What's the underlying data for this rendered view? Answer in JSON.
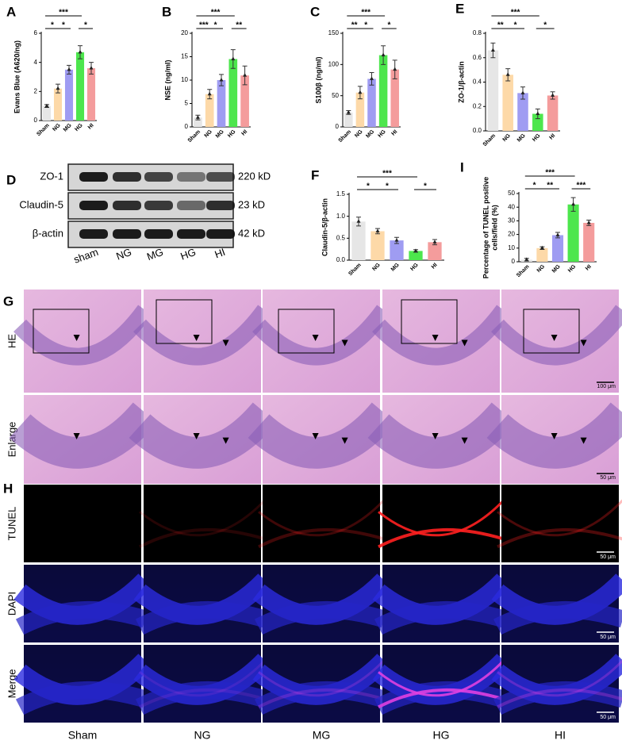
{
  "chart_data": [
    {
      "type": "bar",
      "panel": "A",
      "ylabel": "Evans Blue (A620/ng)",
      "categories": [
        "Sham",
        "NG",
        "MG",
        "HG",
        "HI"
      ],
      "values": [
        1.0,
        2.2,
        3.5,
        4.7,
        3.6
      ],
      "errors": [
        0.1,
        0.3,
        0.3,
        0.45,
        0.4
      ],
      "colors": [
        "#e6e6e6",
        "#fdd9a8",
        "#9f9cf2",
        "#4de64d",
        "#f49c9c"
      ],
      "ylim": [
        0,
        6
      ],
      "yticks": [
        0,
        2,
        4,
        6
      ],
      "comparisons": [
        {
          "groups": [
            "Sham",
            "NG"
          ],
          "label": "*"
        },
        {
          "groups": [
            "NG",
            "MG"
          ],
          "label": "*"
        },
        {
          "groups": [
            "Sham",
            "HG"
          ],
          "label": "***"
        },
        {
          "groups": [
            "HG",
            "HI"
          ],
          "label": "*"
        }
      ]
    },
    {
      "type": "bar",
      "panel": "B",
      "ylabel": "NSE (ng/ml)",
      "categories": [
        "Sham",
        "NG",
        "MG",
        "HG",
        "HI"
      ],
      "values": [
        2,
        7,
        10,
        14.5,
        11
      ],
      "errors": [
        0.5,
        1,
        1.2,
        2,
        2
      ],
      "colors": [
        "#e6e6e6",
        "#fdd9a8",
        "#9f9cf2",
        "#4de64d",
        "#f49c9c"
      ],
      "ylim": [
        0,
        20
      ],
      "yticks": [
        0,
        5,
        10,
        15,
        20
      ],
      "comparisons": [
        {
          "groups": [
            "Sham",
            "NG"
          ],
          "label": "***"
        },
        {
          "groups": [
            "NG",
            "MG"
          ],
          "label": "*"
        },
        {
          "groups": [
            "Sham",
            "HG"
          ],
          "label": "***"
        },
        {
          "groups": [
            "HG",
            "HI"
          ],
          "label": "**"
        }
      ]
    },
    {
      "type": "bar",
      "panel": "C",
      "ylabel": "S100β (ng/ml)",
      "categories": [
        "Sham",
        "NG",
        "MG",
        "HG",
        "HI"
      ],
      "values": [
        23,
        55,
        77,
        115,
        92
      ],
      "errors": [
        3,
        10,
        10,
        15,
        15
      ],
      "colors": [
        "#e6e6e6",
        "#fdd9a8",
        "#9f9cf2",
        "#4de64d",
        "#f49c9c"
      ],
      "ylim": [
        0,
        150
      ],
      "yticks": [
        0,
        50,
        100,
        150
      ],
      "comparisons": [
        {
          "groups": [
            "Sham",
            "NG"
          ],
          "label": "**"
        },
        {
          "groups": [
            "NG",
            "MG"
          ],
          "label": "*"
        },
        {
          "groups": [
            "Sham",
            "HG"
          ],
          "label": "***"
        },
        {
          "groups": [
            "HG",
            "HI"
          ],
          "label": "*"
        }
      ]
    },
    {
      "type": "bar",
      "panel": "E",
      "ylabel": "ZO-1/β-actin",
      "categories": [
        "Sham",
        "NG",
        "MG",
        "HG",
        "HI"
      ],
      "values": [
        0.66,
        0.46,
        0.31,
        0.14,
        0.29
      ],
      "errors": [
        0.06,
        0.05,
        0.05,
        0.04,
        0.03
      ],
      "colors": [
        "#e6e6e6",
        "#fdd9a8",
        "#9f9cf2",
        "#4de64d",
        "#f49c9c"
      ],
      "ylim": [
        0,
        0.8
      ],
      "yticks": [
        {
          "value": 0,
          "label": "0.0"
        },
        0.2,
        0.4,
        0.6,
        0.8
      ],
      "comparisons": [
        {
          "groups": [
            "Sham",
            "NG"
          ],
          "label": "**"
        },
        {
          "groups": [
            "NG",
            "MG"
          ],
          "label": "*"
        },
        {
          "groups": [
            "Sham",
            "HG"
          ],
          "label": "***"
        },
        {
          "groups": [
            "HG",
            "HI"
          ],
          "label": "*"
        }
      ]
    },
    {
      "type": "bar",
      "panel": "F",
      "ylabel": "Claudin-5/β-actin",
      "categories": [
        "Sham",
        "NG",
        "MG",
        "HG",
        "HI"
      ],
      "values": [
        0.88,
        0.66,
        0.45,
        0.21,
        0.41
      ],
      "errors": [
        0.1,
        0.06,
        0.07,
        0.03,
        0.06
      ],
      "colors": [
        "#e6e6e6",
        "#fdd9a8",
        "#9f9cf2",
        "#4de64d",
        "#f49c9c"
      ],
      "ylim": [
        0,
        1.5
      ],
      "yticks": [
        {
          "value": 0,
          "label": "0.0"
        },
        0.5,
        {
          "value": 1,
          "label": "1.0"
        },
        1.5
      ],
      "comparisons": [
        {
          "groups": [
            "Sham",
            "NG"
          ],
          "label": "*"
        },
        {
          "groups": [
            "NG",
            "MG"
          ],
          "label": "*"
        },
        {
          "groups": [
            "Sham",
            "HG"
          ],
          "label": "***"
        },
        {
          "groups": [
            "HG",
            "HI"
          ],
          "label": "*"
        }
      ]
    },
    {
      "type": "bar",
      "panel": "I",
      "ylabel": [
        "Percentage of TUNEL positive",
        "cells/field (%)"
      ],
      "categories": [
        "Sham",
        "NG",
        "MG",
        "HG",
        "HI"
      ],
      "values": [
        1.5,
        10,
        19.5,
        42,
        28.5
      ],
      "errors": [
        1,
        1,
        2,
        5,
        2
      ],
      "colors": [
        "#e6e6e6",
        "#fdd9a8",
        "#9f9cf2",
        "#4de64d",
        "#f49c9c"
      ],
      "ylim": [
        0,
        50
      ],
      "yticks": [
        0,
        10,
        20,
        30,
        40,
        50
      ],
      "comparisons": [
        {
          "groups": [
            "Sham",
            "NG"
          ],
          "label": "*"
        },
        {
          "groups": [
            "NG",
            "MG"
          ],
          "label": "**"
        },
        {
          "groups": [
            "Sham",
            "HG"
          ],
          "label": "***"
        },
        {
          "groups": [
            "HG",
            "HI"
          ],
          "label": "***"
        }
      ]
    }
  ],
  "blot": {
    "panel": "D",
    "rows": [
      {
        "protein": "ZO-1",
        "size": "220 kD"
      },
      {
        "protein": "Claudin-5",
        "size": "23  kD"
      },
      {
        "protein": "β-actin",
        "size": "42  kD"
      }
    ],
    "lanes": [
      "sham",
      "NG",
      "MG",
      "HG",
      "HI"
    ]
  },
  "he": {
    "panel": "G",
    "rows": [
      "HE",
      "Enlarge"
    ],
    "scale_bars": [
      "100 μm",
      "50 μm"
    ]
  },
  "tunel": {
    "panel": "H",
    "rows": [
      "TUNEL",
      "DAPI",
      "Merge"
    ],
    "scale_bar": "50 μm"
  },
  "groups": [
    "Sham",
    "NG",
    "MG",
    "HG",
    "HI"
  ]
}
